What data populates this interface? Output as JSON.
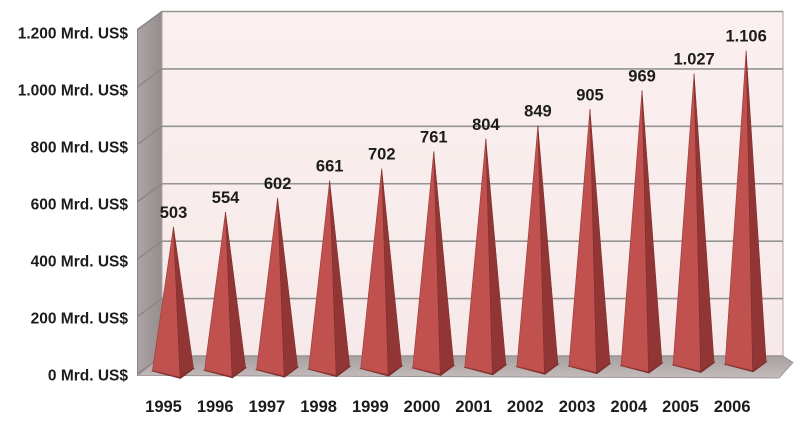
{
  "chart_data": {
    "type": "bar",
    "variant": "3d-pyramid-columns",
    "title": "",
    "categories": [
      "1995",
      "1996",
      "1997",
      "1998",
      "1999",
      "2000",
      "2001",
      "2002",
      "2003",
      "2004",
      "2005",
      "2006"
    ],
    "values": [
      503,
      554,
      602,
      661,
      702,
      761,
      804,
      849,
      905,
      969,
      1027,
      1106
    ],
    "value_labels": [
      "503",
      "554",
      "602",
      "661",
      "702",
      "761",
      "804",
      "849",
      "905",
      "969",
      "1.027",
      "1.106"
    ],
    "unit": "Mrd. US$",
    "xlabel": "",
    "ylabel": "Mrd. US$",
    "ylim": [
      0,
      1200
    ],
    "ytick_step": 200,
    "ytick_values": [
      0,
      200,
      400,
      600,
      800,
      1000,
      1200
    ],
    "ytick_labels": [
      "0 Mrd. US$",
      "200 Mrd. US$",
      "400 Mrd. US$",
      "600 Mrd. US$",
      "800 Mrd. US$",
      "1.000 Mrd. US$",
      "1.200 Mrd. US$"
    ],
    "grid": true,
    "legend": "none",
    "colors": {
      "pyramid_light": "#c1514e",
      "pyramid_dark": "#913634",
      "pyramid_base": "#7c2e2c",
      "wall_back_top": "#faf0ef",
      "wall_back_bottom": "#f7e9e9",
      "wall_side_light": "#ada5a5",
      "wall_side_dark": "#958d8d",
      "floor_back": "#a89f9f",
      "floor_front": "#c4bcbc",
      "gridline": "#949494",
      "side_edge": "#8b8383",
      "label_text": "#1c1c1c",
      "background": "#ffffff"
    }
  }
}
